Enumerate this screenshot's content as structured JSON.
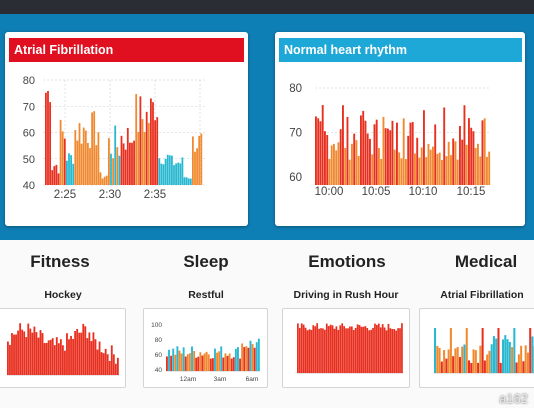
{
  "colors": {
    "band": "#0e7fb4",
    "afib_header": "#e01020",
    "normal_header": "#1ea8d8",
    "red": "#e83020",
    "orange": "#f08a30",
    "cyan": "#28b8d0"
  },
  "afib_panel": {
    "title": "Atrial Fibrillation",
    "y_ticks": [
      "80",
      "70",
      "60",
      "50",
      "40"
    ],
    "x_ticks": [
      "2:25",
      "2:30",
      "2:35"
    ]
  },
  "normal_panel": {
    "title": "Normal heart rhythm",
    "y_ticks": [
      "80",
      "70",
      "60"
    ],
    "x_ticks": [
      "10:00",
      "10:05",
      "10:10",
      "10:15"
    ]
  },
  "categories": [
    {
      "title": "Fitness",
      "subtitle": "Hockey"
    },
    {
      "title": "Sleep",
      "subtitle": "Restful"
    },
    {
      "title": "Emotions",
      "subtitle": "Driving in Rush Hour"
    },
    {
      "title": "Medical",
      "subtitle": "Atrial Fibrillation"
    }
  ],
  "sleep_mini": {
    "y_ticks": [
      "100",
      "80",
      "60",
      "40"
    ],
    "x_ticks": [
      "12am",
      "3am",
      "6am"
    ]
  },
  "watermark": "a162"
}
